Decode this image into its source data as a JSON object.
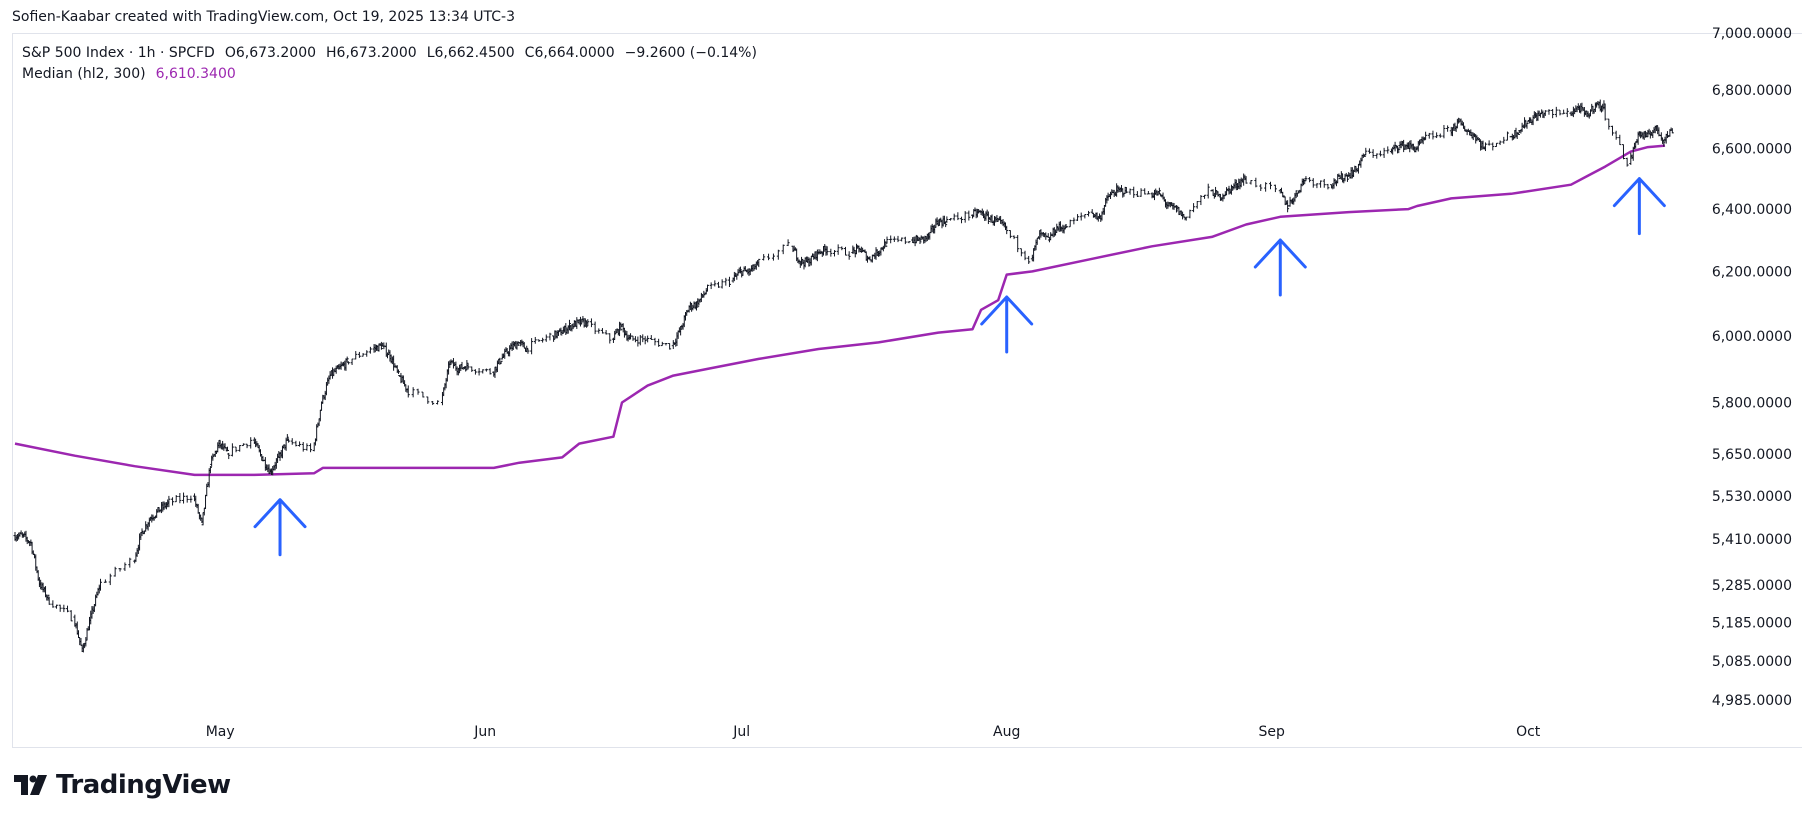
{
  "header": {
    "credit": "Sofien-Kaabar created with TradingView.com, Oct 19, 2025 13:34 UTC-3"
  },
  "legend": {
    "symbol": "S&P 500 Index · 1h · SPCFD",
    "open": "O6,673.2000",
    "high": "H6,673.2000",
    "low": "L6,662.4500",
    "close": "C6,664.0000",
    "change": "−9.2600 (−0.14%)",
    "indicator_name": "Median (hl2, 300)",
    "indicator_value": "6,610.3400"
  },
  "footer": {
    "brand": "TradingView"
  },
  "colors": {
    "candle": "#131722",
    "median": "#9c27b0",
    "arrow": "#2962ff"
  },
  "chart_data": {
    "type": "line",
    "title": "S&P 500 Index · 1h · SPCFD",
    "y_ticks": [
      7000,
      6800,
      6600,
      6400,
      6200,
      6000,
      5800,
      5650,
      5530,
      5410,
      5285,
      5185,
      5085,
      4985
    ],
    "y_tick_labels": [
      "7,000.0000",
      "6,800.0000",
      "6,600.0000",
      "6,400.0000",
      "6,200.0000",
      "6,000.0000",
      "5,800.0000",
      "5,650.0000",
      "5,530.0000",
      "5,410.0000",
      "5,285.0000",
      "5,185.0000",
      "5,085.0000",
      "4,985.0000"
    ],
    "y_scale": "log",
    "x_ticks": [
      "May",
      "Jun",
      "Jul",
      "Aug",
      "Sep",
      "Oct"
    ],
    "x_range": [
      "2025-04-07",
      "2025-10-17"
    ],
    "series": [
      {
        "name": "S&P 500 Index",
        "style": "ohlc-bars",
        "points": [
          [
            "2025-04-07",
            5420
          ],
          [
            "2025-04-08",
            5400
          ],
          [
            "2025-04-09",
            5290
          ],
          [
            "2025-04-10",
            5250
          ],
          [
            "2025-04-11",
            5200
          ],
          [
            "2025-04-14",
            5110
          ],
          [
            "2025-04-15",
            5200
          ],
          [
            "2025-04-16",
            5280
          ],
          [
            "2025-04-17",
            5350
          ],
          [
            "2025-04-21",
            5430
          ],
          [
            "2025-04-22",
            5470
          ],
          [
            "2025-04-23",
            5490
          ],
          [
            "2025-04-24",
            5510
          ],
          [
            "2025-04-25",
            5530
          ],
          [
            "2025-04-28",
            5450
          ],
          [
            "2025-04-29",
            5620
          ],
          [
            "2025-04-30",
            5680
          ],
          [
            "2025-05-01",
            5650
          ],
          [
            "2025-05-02",
            5690
          ],
          [
            "2025-05-05",
            5640
          ],
          [
            "2025-05-06",
            5600
          ],
          [
            "2025-05-07",
            5640
          ],
          [
            "2025-05-08",
            5690
          ],
          [
            "2025-05-09",
            5660
          ],
          [
            "2025-05-12",
            5800
          ],
          [
            "2025-05-13",
            5880
          ],
          [
            "2025-05-14",
            5900
          ],
          [
            "2025-05-15",
            5920
          ],
          [
            "2025-05-16",
            5960
          ],
          [
            "2025-05-19",
            5970
          ],
          [
            "2025-05-20",
            5940
          ],
          [
            "2025-05-21",
            5880
          ],
          [
            "2025-05-22",
            5840
          ],
          [
            "2025-05-23",
            5800
          ],
          [
            "2025-05-27",
            5920
          ],
          [
            "2025-05-28",
            5900
          ],
          [
            "2025-05-29",
            5910
          ],
          [
            "2025-05-30",
            5890
          ],
          [
            "2025-06-02",
            5930
          ],
          [
            "2025-06-03",
            5960
          ],
          [
            "2025-06-04",
            5980
          ],
          [
            "2025-06-05",
            5960
          ],
          [
            "2025-06-06",
            6000
          ],
          [
            "2025-06-09",
            6010
          ],
          [
            "2025-06-10",
            6030
          ],
          [
            "2025-06-11",
            6040
          ],
          [
            "2025-06-12",
            6040
          ],
          [
            "2025-06-13",
            5990
          ],
          [
            "2025-06-16",
            6030
          ],
          [
            "2025-06-17",
            5990
          ],
          [
            "2025-06-18",
            5990
          ],
          [
            "2025-06-20",
            5970
          ],
          [
            "2025-06-23",
            6020
          ],
          [
            "2025-06-24",
            6090
          ],
          [
            "2025-06-25",
            6100
          ],
          [
            "2025-06-26",
            6140
          ],
          [
            "2025-06-27",
            6170
          ],
          [
            "2025-06-30",
            6200
          ],
          [
            "2025-07-01",
            6200
          ],
          [
            "2025-07-02",
            6220
          ],
          [
            "2025-07-03",
            6280
          ],
          [
            "2025-07-07",
            6230
          ],
          [
            "2025-07-08",
            6230
          ],
          [
            "2025-07-09",
            6260
          ],
          [
            "2025-07-10",
            6270
          ],
          [
            "2025-07-11",
            6260
          ],
          [
            "2025-07-14",
            6270
          ],
          [
            "2025-07-15",
            6240
          ],
          [
            "2025-07-16",
            6260
          ],
          [
            "2025-07-17",
            6290
          ],
          [
            "2025-07-18",
            6300
          ],
          [
            "2025-07-21",
            6300
          ],
          [
            "2025-07-22",
            6310
          ],
          [
            "2025-07-23",
            6360
          ],
          [
            "2025-07-24",
            6360
          ],
          [
            "2025-07-25",
            6380
          ],
          [
            "2025-07-28",
            6390
          ],
          [
            "2025-07-29",
            6370
          ],
          [
            "2025-07-30",
            6360
          ],
          [
            "2025-07-31",
            6340
          ],
          [
            "2025-08-01",
            6240
          ],
          [
            "2025-08-04",
            6320
          ],
          [
            "2025-08-05",
            6300
          ],
          [
            "2025-08-06",
            6340
          ],
          [
            "2025-08-07",
            6340
          ],
          [
            "2025-08-08",
            6390
          ],
          [
            "2025-08-11",
            6370
          ],
          [
            "2025-08-12",
            6440
          ],
          [
            "2025-08-13",
            6460
          ],
          [
            "2025-08-14",
            6460
          ],
          [
            "2025-08-15",
            6450
          ],
          [
            "2025-08-18",
            6450
          ],
          [
            "2025-08-19",
            6410
          ],
          [
            "2025-08-20",
            6400
          ],
          [
            "2025-08-21",
            6370
          ],
          [
            "2025-08-22",
            6460
          ],
          [
            "2025-08-25",
            6440
          ],
          [
            "2025-08-26",
            6460
          ],
          [
            "2025-08-27",
            6480
          ],
          [
            "2025-08-28",
            6500
          ],
          [
            "2025-08-29",
            6460
          ],
          [
            "2025-09-02",
            6410
          ],
          [
            "2025-09-03",
            6450
          ],
          [
            "2025-09-04",
            6500
          ],
          [
            "2025-09-05",
            6480
          ],
          [
            "2025-09-08",
            6500
          ],
          [
            "2025-09-09",
            6510
          ],
          [
            "2025-09-10",
            6530
          ],
          [
            "2025-09-11",
            6580
          ],
          [
            "2025-09-12",
            6590
          ],
          [
            "2025-09-15",
            6610
          ],
          [
            "2025-09-16",
            6610
          ],
          [
            "2025-09-17",
            6600
          ],
          [
            "2025-09-18",
            6630
          ],
          [
            "2025-09-19",
            6660
          ],
          [
            "2025-09-22",
            6690
          ],
          [
            "2025-09-23",
            6660
          ],
          [
            "2025-09-24",
            6640
          ],
          [
            "2025-09-25",
            6600
          ],
          [
            "2025-09-26",
            6640
          ],
          [
            "2025-09-29",
            6660
          ],
          [
            "2025-09-30",
            6690
          ],
          [
            "2025-10-01",
            6710
          ],
          [
            "2025-10-02",
            6720
          ],
          [
            "2025-10-03",
            6720
          ],
          [
            "2025-10-06",
            6740
          ],
          [
            "2025-10-07",
            6710
          ],
          [
            "2025-10-08",
            6750
          ],
          [
            "2025-10-09",
            6740
          ],
          [
            "2025-10-10",
            6550
          ],
          [
            "2025-10-13",
            6650
          ],
          [
            "2025-10-14",
            6640
          ],
          [
            "2025-10-15",
            6670
          ],
          [
            "2025-10-16",
            6630
          ],
          [
            "2025-10-17",
            6664
          ]
        ]
      },
      {
        "name": "Median (hl2, 300)",
        "style": "line",
        "points": [
          [
            "2025-04-07",
            5680
          ],
          [
            "2025-04-14",
            5645
          ],
          [
            "2025-04-21",
            5615
          ],
          [
            "2025-04-28",
            5590
          ],
          [
            "2025-05-05",
            5590
          ],
          [
            "2025-05-12",
            5595
          ],
          [
            "2025-05-13",
            5610
          ],
          [
            "2025-05-19",
            5610
          ],
          [
            "2025-05-27",
            5610
          ],
          [
            "2025-06-02",
            5610
          ],
          [
            "2025-06-05",
            5625
          ],
          [
            "2025-06-10",
            5640
          ],
          [
            "2025-06-12",
            5680
          ],
          [
            "2025-06-16",
            5700
          ],
          [
            "2025-06-17",
            5800
          ],
          [
            "2025-06-20",
            5850
          ],
          [
            "2025-06-23",
            5880
          ],
          [
            "2025-06-27",
            5900
          ],
          [
            "2025-07-03",
            5930
          ],
          [
            "2025-07-10",
            5960
          ],
          [
            "2025-07-17",
            5980
          ],
          [
            "2025-07-24",
            6010
          ],
          [
            "2025-07-28",
            6020
          ],
          [
            "2025-07-29",
            6080
          ],
          [
            "2025-07-31",
            6110
          ],
          [
            "2025-08-01",
            6190
          ],
          [
            "2025-08-04",
            6200
          ],
          [
            "2025-08-11",
            6240
          ],
          [
            "2025-08-18",
            6280
          ],
          [
            "2025-08-25",
            6310
          ],
          [
            "2025-08-29",
            6350
          ],
          [
            "2025-09-02",
            6375
          ],
          [
            "2025-09-10",
            6390
          ],
          [
            "2025-09-17",
            6400
          ],
          [
            "2025-09-18",
            6410
          ],
          [
            "2025-09-22",
            6435
          ],
          [
            "2025-09-29",
            6450
          ],
          [
            "2025-10-06",
            6480
          ],
          [
            "2025-10-08",
            6510
          ],
          [
            "2025-10-10",
            6540
          ],
          [
            "2025-10-13",
            6590
          ],
          [
            "2025-10-15",
            6605
          ],
          [
            "2025-10-17",
            6610
          ]
        ]
      }
    ],
    "annotations": [
      {
        "type": "arrow-up",
        "date": "2025-05-08",
        "value": 5520
      },
      {
        "type": "arrow-up",
        "date": "2025-08-01",
        "value": 6120
      },
      {
        "type": "arrow-up",
        "date": "2025-09-02",
        "value": 6300
      },
      {
        "type": "arrow-up",
        "date": "2025-10-14",
        "value": 6500
      }
    ],
    "grid": false,
    "legend_position": "top-left"
  }
}
